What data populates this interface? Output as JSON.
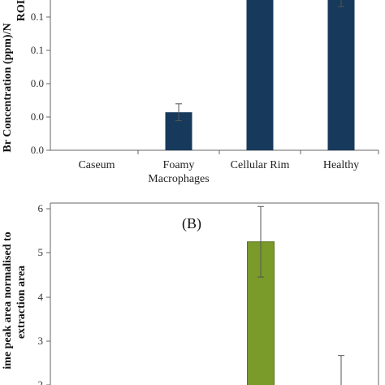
{
  "chart_data": [
    {
      "type": "bar",
      "categories": [
        "Caseum",
        "Foamy\nMacrophages",
        "Cellular Rim",
        "Healthy"
      ],
      "y_tick_labels": [
        "0.0",
        "0.0",
        "0.1",
        "0.1"
      ],
      "ylabel_lines": [
        "Br Concentration (ppm)/N",
        "ROI"
      ],
      "ylim": [
        0,
        0.175
      ],
      "values": [
        0.0,
        0.045,
        0.18,
        0.18
      ],
      "errors": [
        0.0,
        0.01,
        0.0,
        0.01
      ],
      "bar_color": "#17395c",
      "grid": false
    },
    {
      "type": "bar",
      "panel_label": "(B)",
      "y_tick_labels": [
        "2",
        "3",
        "4",
        "5",
        "6"
      ],
      "ylabel_lines": [
        "ime peak area normalised to",
        "extraction area"
      ],
      "ylim": [
        2,
        6
      ],
      "values": [
        5.25,
        1.97
      ],
      "errors": [
        0.8,
        0.7
      ],
      "bar_color": "#7a9a2a",
      "grid": false
    }
  ]
}
